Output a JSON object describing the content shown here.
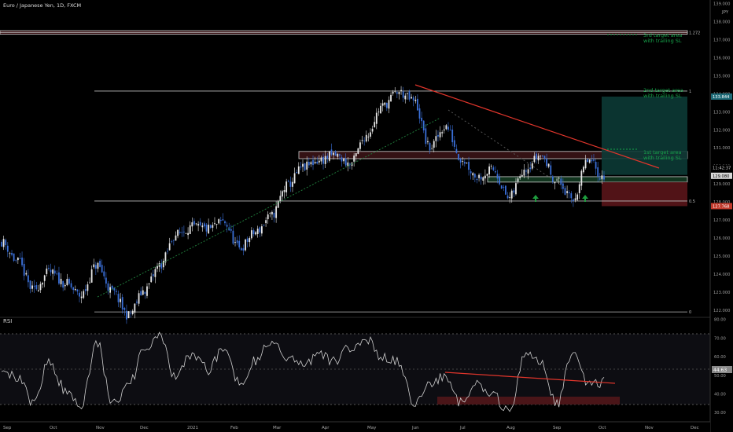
{
  "header": {
    "symbol_title": "Euro / Japanese Yen, 1D, FXCM"
  },
  "price_axis": {
    "currency": "JPY",
    "ticks": [
      "139.000",
      "138.000",
      "137.000",
      "136.000",
      "135.000",
      "134.000",
      "133.000",
      "132.000",
      "131.000",
      "130.000",
      "129.000",
      "128.000",
      "127.000",
      "126.000",
      "125.000",
      "124.000",
      "123.000",
      "122.000"
    ],
    "badges": [
      {
        "text": "133.844",
        "value": 133.844,
        "bg": "#1f6b78",
        "fg": "#ffffff"
      },
      {
        "text": "11:42:37",
        "value": 129.9,
        "bg": "#000000",
        "fg": "#cccccc"
      },
      {
        "text": "129.080",
        "value": 129.45,
        "bg": "#d8d8d8",
        "fg": "#000000"
      },
      {
        "text": "127.768",
        "value": 127.768,
        "bg": "#c0392b",
        "fg": "#ffffff"
      }
    ]
  },
  "time_axis": {
    "labels": [
      "Sep",
      "Oct",
      "Nov",
      "Dec",
      "2021",
      "Feb",
      "Mar",
      "Apr",
      "May",
      "Jun",
      "Jul",
      "Aug",
      "Sep",
      "Oct",
      "Nov",
      "Dec"
    ]
  },
  "fib_levels": [
    {
      "label": "1.272",
      "price": 137.4
    },
    {
      "label": "1",
      "price": 134.15
    },
    {
      "label": "0.5",
      "price": 128.05
    },
    {
      "label": "0",
      "price": 121.9
    }
  ],
  "annotations": {
    "target3": [
      "3rd target area",
      "with trailing SL"
    ],
    "target2": [
      "2nd target area",
      "with trailing SL"
    ],
    "target1": [
      "1st target area",
      "with trailing SL"
    ]
  },
  "rsi": {
    "label": "RSI",
    "ticks": [
      "80.00",
      "70.00",
      "60.00",
      "50.00",
      "40.00",
      "30.00"
    ],
    "badge": "44.63"
  },
  "colors": {
    "background": "#000000",
    "up_candle": "#e6e6e6",
    "down_candle": "#3a6fd8",
    "trend_red": "#e0352b",
    "target_text": "#16a34a",
    "zone_green": "#0f4f3f",
    "zone_red": "#6b1a1f"
  },
  "chart_data": {
    "type": "candlestick",
    "price_range": [
      121.6,
      139.2
    ],
    "rsi_range": [
      25,
      82
    ],
    "candles_anchor_closes": [
      125.8,
      124.7,
      123.1,
      124.1,
      123.5,
      122.8,
      124.5,
      123.0,
      121.7,
      123.1,
      124.5,
      126.2,
      126.6,
      126.5,
      126.9,
      125.4,
      126.3,
      127.2,
      128.9,
      129.9,
      130.3,
      130.6,
      130.1,
      131.7,
      133.3,
      134.1,
      133.6,
      131.0,
      132.2,
      130.4,
      129.4,
      129.8,
      128.2,
      129.9,
      130.6,
      129.2,
      128.1,
      130.3,
      129.3
    ],
    "rsi_anchor_values": [
      55,
      48,
      35,
      58,
      42,
      34,
      68,
      35,
      44,
      63,
      71,
      48,
      62,
      53,
      65,
      46,
      58,
      68,
      60,
      55,
      62,
      57,
      65,
      70,
      59,
      57,
      36,
      44,
      50,
      35,
      45,
      39,
      30,
      62,
      57,
      34,
      61,
      46,
      46
    ],
    "zones": [
      {
        "name": "1.272 resistance",
        "from": 137.3,
        "to": 137.5
      },
      {
        "name": "resistance box",
        "from": 130.4,
        "to": 130.8
      },
      {
        "name": "support box",
        "from": 129.1,
        "to": 129.4
      },
      {
        "name": "long target",
        "from": 129.5,
        "to": 133.844
      },
      {
        "name": "stop loss",
        "from": 127.768,
        "to": 129.1
      }
    ]
  }
}
